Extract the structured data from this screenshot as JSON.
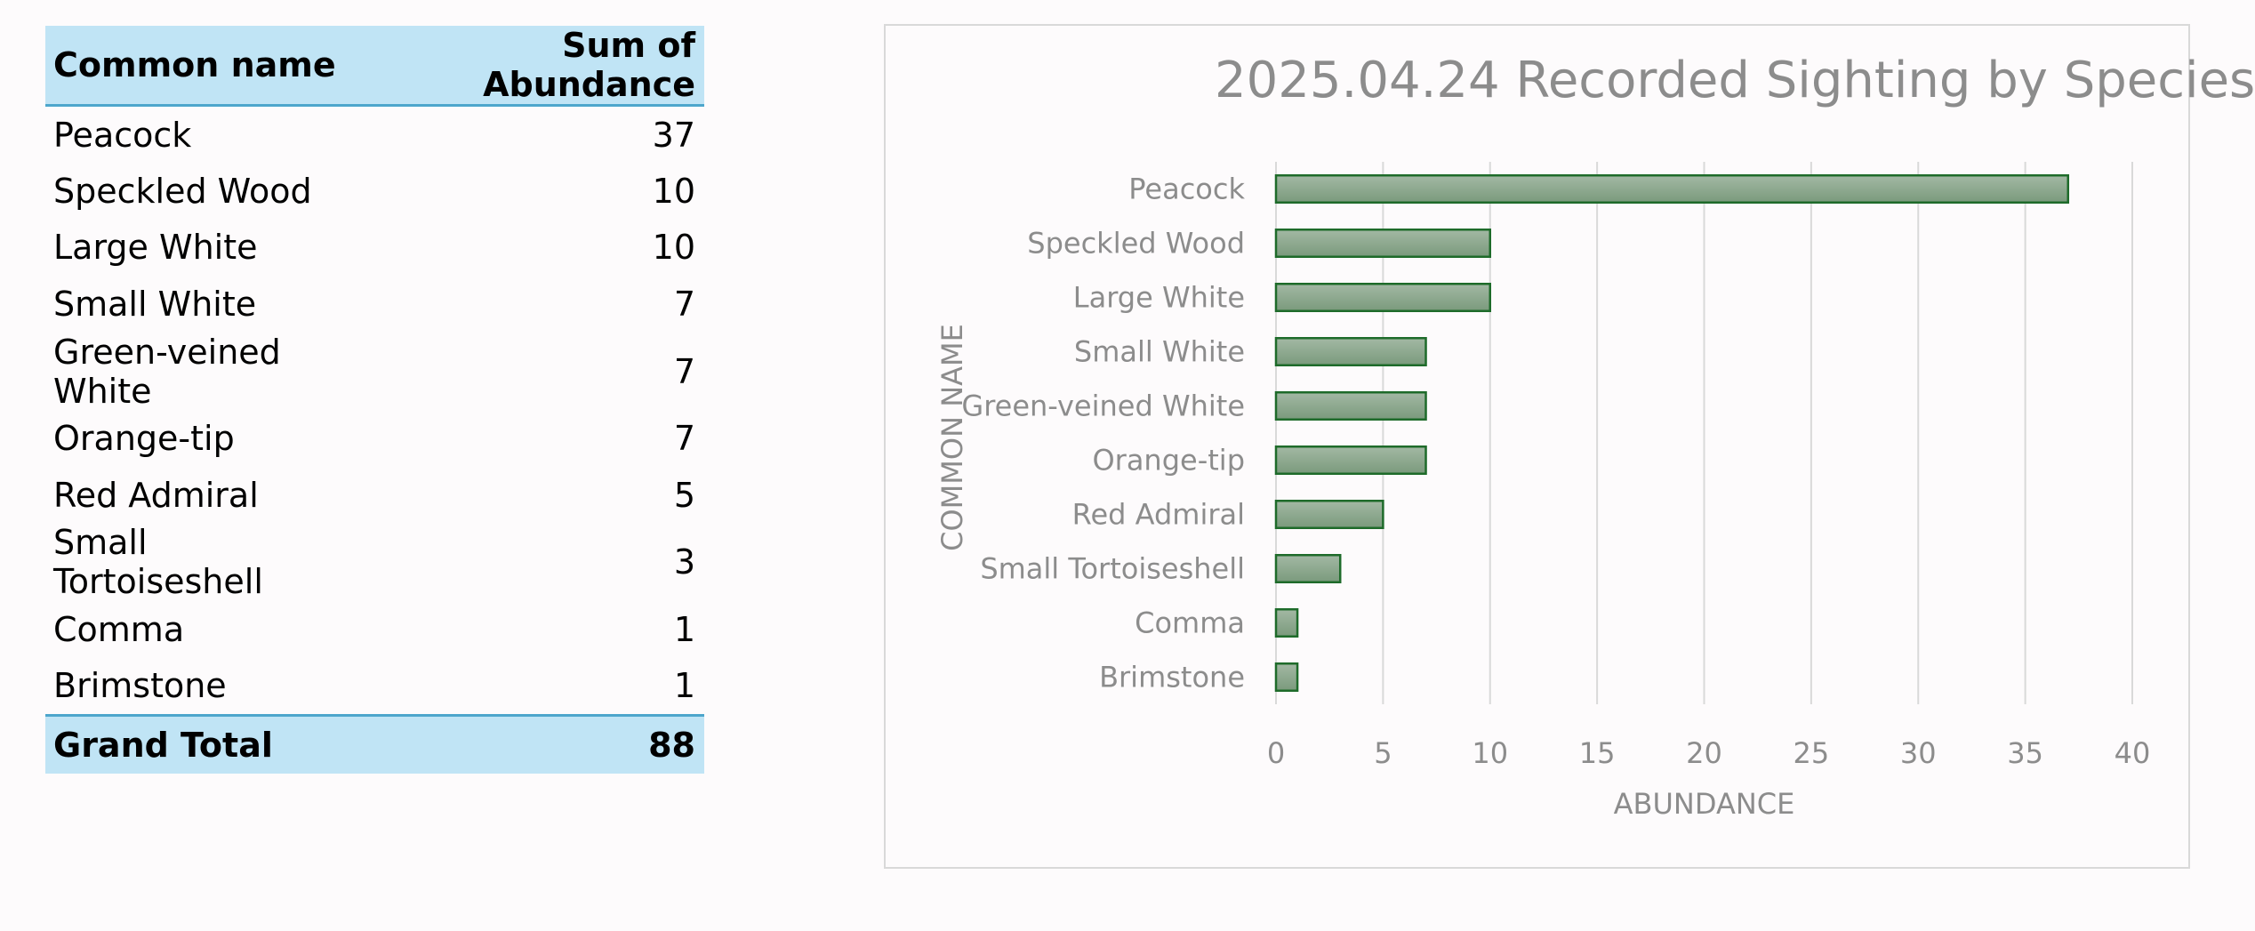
{
  "table": {
    "headers": {
      "name": "Common name",
      "value": "Sum of Abundance"
    },
    "rows": [
      {
        "name": "Peacock",
        "value": "37"
      },
      {
        "name": "Speckled Wood",
        "value": "10"
      },
      {
        "name": "Large White",
        "value": "10"
      },
      {
        "name": "Small White",
        "value": "7"
      },
      {
        "name": "Green-veined White",
        "value": "7"
      },
      {
        "name": "Orange-tip",
        "value": "7"
      },
      {
        "name": "Red Admiral",
        "value": "5"
      },
      {
        "name": "Small Tortoiseshell",
        "value": "3"
      },
      {
        "name": "Comma",
        "value": "1"
      },
      {
        "name": "Brimstone",
        "value": "1"
      }
    ],
    "total": {
      "name": "Grand Total",
      "value": "88"
    }
  },
  "chart_data": {
    "type": "bar",
    "orientation": "horizontal",
    "title": "2025.04.24 Recorded Sighting by Species",
    "xlabel": "ABUNDANCE",
    "ylabel": "COMMON NAME",
    "categories": [
      "Peacock",
      "Speckled Wood",
      "Large White",
      "Small White",
      "Green-veined White",
      "Orange-tip",
      "Red Admiral",
      "Small Tortoiseshell",
      "Comma",
      "Brimstone"
    ],
    "values": [
      37,
      10,
      10,
      7,
      7,
      7,
      5,
      3,
      1,
      1
    ],
    "xlim": [
      0,
      40
    ],
    "xticks": [
      0,
      5,
      10,
      15,
      20,
      25,
      30,
      35,
      40
    ],
    "grid": "vertical",
    "legend": "none",
    "colors": {
      "bar_fill_top": "#a3b8a4",
      "bar_fill_bottom": "#7a9a7c",
      "bar_stroke": "#1e6b2a",
      "grid": "#d9d9d9",
      "text": "#8c8c8c"
    }
  }
}
